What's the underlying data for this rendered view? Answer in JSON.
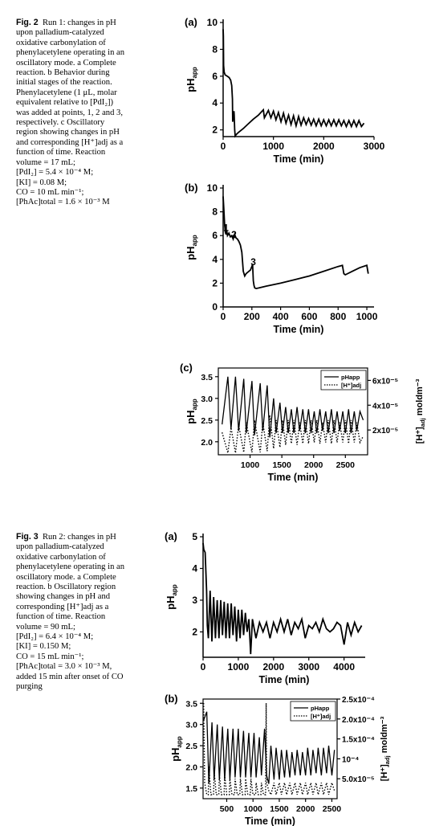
{
  "fig2": {
    "label": "Fig. 2",
    "lines": [
      "Run 1: changes in pH",
      "upon palladium-catalyzed",
      "oxidative carbonylation of",
      "phenylacetylene operating in an",
      "oscillatory mode. a Complete",
      "reaction. b Behavior during",
      "initial stages of the reaction.",
      "Phenylacetylene (1 μL, molar",
      "equivalent relative to [PdI₂])",
      "was added at points, 1, 2 and 3,",
      "respectively. c Oscillatory",
      "region showing changes in pH",
      "and corresponding [H⁺]adj as a",
      "function of time. Reaction",
      "volume = 17 mL;",
      "[PdI₂] = 5.4 × 10⁻⁴ M;",
      "[KI] = 0.08 M;",
      "CO = 10 mL min⁻¹;",
      "[PhAc]total = 1.6 × 10⁻³ M"
    ]
  },
  "fig3": {
    "label": "Fig. 3",
    "lines": [
      "Run 2: changes in pH",
      "upon palladium-catalyzed",
      "oxidative carbonylation of",
      "phenylacetylene operating in an",
      "oscillatory mode. a Complete",
      "reaction. b Oscillatory region",
      "showing changes in pH and",
      "corresponding [H⁺]adj as a",
      "function of time. Reaction",
      "volume = 90 mL;",
      "[PdI₂] = 6.4 × 10⁻⁴ M;",
      "[KI] = 0.150 M;",
      "CO = 15 mL min⁻¹;",
      "[PhAc]total = 3.0 × 10⁻³ M,",
      "added 15 min after onset of CO",
      "purging"
    ]
  },
  "chart_data": [
    {
      "id": "2a",
      "type": "line",
      "panel_label": "(a)",
      "xlabel": "Time (min)",
      "ylabel": "pH",
      "ylabel_sub": "app",
      "xlim": [
        0,
        3000
      ],
      "ylim": [
        1.5,
        10
      ],
      "xticks": [
        0,
        1000,
        2000,
        3000
      ],
      "yticks": [
        2,
        4,
        6,
        8,
        10
      ],
      "x": [
        0,
        5,
        10,
        20,
        40,
        80,
        120,
        150,
        170,
        185,
        190,
        200,
        205,
        215,
        220,
        230,
        240,
        250,
        260,
        300,
        400,
        500,
        600,
        700,
        800,
        820,
        900,
        950,
        1000,
        1050,
        1100,
        1150,
        1200,
        1250,
        1300,
        1350,
        1400,
        1450,
        1500,
        1550,
        1600,
        1650,
        1700,
        1750,
        1800,
        1850,
        1900,
        1950,
        2000,
        2050,
        2100,
        2150,
        2200,
        2250,
        2300,
        2350,
        2400,
        2450,
        2500,
        2550,
        2600,
        2650,
        2700,
        2750,
        2800
      ],
      "y": [
        9.5,
        9.0,
        6.8,
        6.3,
        6.1,
        6.0,
        5.9,
        5.7,
        5.3,
        4.3,
        2.6,
        3.0,
        2.8,
        3.4,
        3.1,
        2.0,
        1.55,
        1.6,
        1.65,
        1.8,
        2.1,
        2.45,
        2.8,
        3.1,
        3.5,
        2.9,
        3.45,
        2.9,
        3.4,
        2.75,
        3.3,
        2.6,
        3.25,
        2.5,
        3.1,
        2.4,
        3.05,
        2.3,
        3.0,
        2.35,
        2.9,
        2.4,
        2.85,
        2.35,
        2.8,
        2.3,
        2.8,
        2.3,
        2.75,
        2.3,
        2.75,
        2.3,
        2.75,
        2.3,
        2.75,
        2.3,
        2.7,
        2.25,
        2.7,
        2.25,
        2.7,
        2.25,
        2.7,
        2.25,
        2.5
      ]
    },
    {
      "id": "2b",
      "type": "line",
      "panel_label": "(b)",
      "xlabel": "Time (min)",
      "ylabel": "pH",
      "ylabel_sub": "app",
      "xlim": [
        0,
        1050
      ],
      "ylim": [
        0,
        10
      ],
      "xticks": [
        0,
        200,
        400,
        600,
        800,
        1000
      ],
      "yticks": [
        0,
        2,
        4,
        6,
        8,
        10
      ],
      "annotations": [
        {
          "text": "1",
          "x": 20,
          "y": 6.4
        },
        {
          "text": "2",
          "x": 75,
          "y": 5.8
        },
        {
          "text": "3",
          "x": 210,
          "y": 3.5
        }
      ],
      "x": [
        0,
        5,
        10,
        15,
        20,
        25,
        30,
        40,
        50,
        60,
        70,
        80,
        90,
        100,
        110,
        120,
        130,
        140,
        150,
        160,
        170,
        180,
        190,
        200,
        205,
        210,
        215,
        220,
        230,
        250,
        300,
        400,
        500,
        600,
        700,
        800,
        830,
        840,
        850,
        900,
        950,
        1000,
        1010
      ],
      "y": [
        9.3,
        8.2,
        7.0,
        6.3,
        6.1,
        6.4,
        6.0,
        6.2,
        5.9,
        6.0,
        5.7,
        6.1,
        5.8,
        5.7,
        5.5,
        5.2,
        4.6,
        3.0,
        2.6,
        2.8,
        2.9,
        3.0,
        3.1,
        3.4,
        3.6,
        2.2,
        1.8,
        1.6,
        1.55,
        1.6,
        1.75,
        2.0,
        2.3,
        2.6,
        3.0,
        3.4,
        3.5,
        2.8,
        2.7,
        3.0,
        3.3,
        3.5,
        2.8
      ]
    },
    {
      "id": "2c",
      "type": "line",
      "panel_label": "(c)",
      "xlabel": "Time (min)",
      "ylabel": "pH",
      "ylabel_sub": "app",
      "y2label": "[H⁺]",
      "y2label_sub": "adj",
      "y2label_tail": " moldm⁻³",
      "xlim": [
        500,
        2850
      ],
      "ylim": [
        1.7,
        3.7
      ],
      "y2lim": [
        0,
        7e-05
      ],
      "xticks": [
        1000,
        1500,
        2000,
        2500
      ],
      "yticks": [
        2.0,
        2.5,
        3.0,
        3.5
      ],
      "y2ticks": [
        {
          "value": 2e-05,
          "label": "2x10⁻⁵"
        },
        {
          "value": 4e-05,
          "label": "4x10⁻⁵"
        },
        {
          "value": 6e-05,
          "label": "6x10⁻⁵"
        }
      ],
      "legend": [
        {
          "name": "pHapp",
          "style": "solid"
        },
        {
          "name": "[H⁺]adj",
          "style": "dotted"
        }
      ],
      "legend_position": "top-right",
      "series": [
        {
          "name": "pHapp",
          "axis": "left",
          "x": [
            560,
            650,
            700,
            770,
            820,
            900,
            940,
            1030,
            1070,
            1160,
            1200,
            1270,
            1310,
            1370,
            1410,
            1470,
            1510,
            1560,
            1600,
            1650,
            1690,
            1740,
            1780,
            1830,
            1870,
            1920,
            1960,
            2010,
            2050,
            2100,
            2140,
            2190,
            2230,
            2280,
            2320,
            2370,
            2410,
            2460,
            2500,
            2550,
            2590,
            2640,
            2680,
            2730,
            2780
          ],
          "y": [
            2.4,
            3.5,
            2.3,
            3.5,
            2.25,
            3.45,
            2.2,
            3.4,
            2.15,
            3.35,
            2.25,
            3.3,
            2.1,
            3.0,
            2.2,
            2.9,
            2.2,
            2.8,
            2.2,
            2.75,
            2.2,
            2.8,
            2.25,
            2.75,
            2.2,
            2.75,
            2.2,
            2.7,
            2.2,
            2.75,
            2.25,
            2.7,
            2.2,
            2.75,
            2.2,
            2.7,
            2.25,
            2.7,
            2.2,
            2.75,
            2.2,
            2.7,
            2.25,
            2.7,
            2.5
          ]
        },
        {
          "name": "[H⁺]adj",
          "axis": "right",
          "x": [
            560,
            650,
            700,
            770,
            820,
            900,
            940,
            1030,
            1070,
            1160,
            1200,
            1270,
            1310,
            1370,
            1410,
            1470,
            1510,
            1560,
            1600,
            1650,
            1690,
            1740,
            1780,
            1830,
            1870,
            1920,
            1960,
            2010,
            2050,
            2100,
            2140,
            2190,
            2230,
            2280,
            2320,
            2370,
            2410,
            2460,
            2500,
            2550,
            2590,
            2640,
            2680,
            2730,
            2780
          ],
          "y": [
            1.8e-05,
            1.5e-06,
            2.2e-05,
            1.5e-06,
            2.4e-05,
            2e-06,
            2.6e-05,
            2e-06,
            2.8e-05,
            2e-06,
            2.6e-05,
            3e-06,
            3.2e-05,
            5e-06,
            2.8e-05,
            6e-06,
            2.8e-05,
            8e-06,
            2.8e-05,
            9e-06,
            2.8e-05,
            8e-06,
            2.6e-05,
            9e-06,
            2.8e-05,
            9e-06,
            2.8e-05,
            1e-05,
            2.8e-05,
            9e-06,
            2.6e-05,
            1e-05,
            2.8e-05,
            9e-06,
            2.8e-05,
            1e-05,
            2.6e-05,
            1e-05,
            2.8e-05,
            9e-06,
            2.8e-05,
            1e-05,
            2.6e-05,
            1e-05,
            1.5e-05
          ]
        }
      ]
    },
    {
      "id": "3a",
      "type": "line",
      "panel_label": "(a)",
      "xlabel": "Time (min)",
      "ylabel": "pH",
      "ylabel_sub": "app",
      "xlim": [
        0,
        4600
      ],
      "ylim": [
        1.2,
        5
      ],
      "xticks": [
        0,
        1000,
        2000,
        3000,
        4000
      ],
      "yticks": [
        2,
        3,
        4,
        5
      ],
      "x": [
        0,
        20,
        60,
        100,
        120,
        150,
        200,
        250,
        300,
        350,
        400,
        450,
        500,
        550,
        600,
        650,
        700,
        750,
        800,
        850,
        900,
        950,
        1000,
        1050,
        1100,
        1150,
        1200,
        1250,
        1300,
        1350,
        1400,
        1500,
        1600,
        1700,
        1800,
        1900,
        2000,
        2100,
        2200,
        2300,
        2400,
        2500,
        2600,
        2700,
        2800,
        2900,
        3000,
        3100,
        3200,
        3300,
        3400,
        3500,
        3600,
        3700,
        3800,
        3900,
        4000,
        4100,
        4200,
        4300,
        4400,
        4500
      ],
      "y": [
        4.8,
        4.6,
        4.5,
        3.3,
        2.2,
        1.8,
        3.3,
        1.7,
        3.1,
        1.8,
        3.0,
        1.8,
        3.0,
        1.9,
        2.95,
        1.8,
        2.9,
        1.8,
        2.9,
        1.9,
        2.8,
        1.7,
        2.7,
        1.8,
        2.7,
        1.9,
        2.6,
        2.0,
        2.4,
        1.3,
        2.4,
        1.8,
        2.3,
        2.0,
        2.3,
        1.8,
        2.3,
        2.0,
        2.4,
        2.0,
        2.4,
        1.9,
        2.3,
        2.1,
        2.4,
        1.8,
        2.2,
        2.1,
        2.3,
        2.0,
        2.4,
        2.1,
        2.0,
        2.1,
        2.3,
        2.2,
        1.6,
        2.3,
        1.9,
        2.3,
        2.0,
        2.2
      ]
    },
    {
      "id": "3b",
      "type": "line",
      "panel_label": "(b)",
      "xlabel": "Time (min)",
      "ylabel": "pH",
      "ylabel_sub": "app",
      "y2label": "[H⁺]",
      "y2label_sub": "adj",
      "y2label_tail": " moldm⁻³",
      "xlim": [
        50,
        2600
      ],
      "ylim": [
        1.25,
        3.6
      ],
      "y2lim": [
        0,
        0.00025
      ],
      "xticks": [
        500,
        1000,
        1500,
        2000,
        2500
      ],
      "yticks": [
        1.5,
        2.0,
        2.5,
        3.0,
        3.5
      ],
      "y2ticks": [
        {
          "value": 5e-05,
          "label": "5.0x10⁻⁵"
        },
        {
          "value": 0.0001,
          "label": "10⁻⁴"
        },
        {
          "value": 0.00015,
          "label": "1.5x10⁻⁴"
        },
        {
          "value": 0.0002,
          "label": "2.0x10⁻⁴"
        },
        {
          "value": 0.00025,
          "label": "2.5x10⁻⁴"
        }
      ],
      "legend": [
        {
          "name": "pHapp",
          "style": "solid"
        },
        {
          "name": "[H⁺]adj",
          "style": "dotted"
        }
      ],
      "legend_position": "top-right",
      "series": [
        {
          "name": "pHapp",
          "axis": "left",
          "x": [
            60,
            120,
            160,
            220,
            260,
            320,
            360,
            420,
            460,
            520,
            560,
            620,
            660,
            720,
            760,
            820,
            860,
            920,
            960,
            1020,
            1060,
            1120,
            1160,
            1220,
            1260,
            1300,
            1340,
            1400,
            1440,
            1500,
            1540,
            1600,
            1640,
            1700,
            1740,
            1800,
            1840,
            1900,
            1940,
            2000,
            2040,
            2100,
            2140,
            2200,
            2240,
            2300,
            2340,
            2400,
            2440,
            2500,
            2550
          ],
          "y": [
            3.1,
            3.3,
            1.6,
            3.05,
            1.7,
            3.0,
            1.7,
            2.95,
            1.7,
            2.9,
            1.7,
            2.9,
            1.75,
            2.9,
            1.75,
            2.85,
            1.75,
            2.8,
            1.75,
            2.8,
            1.75,
            2.7,
            1.8,
            2.9,
            1.8,
            1.6,
            2.5,
            1.7,
            2.45,
            1.7,
            2.4,
            1.75,
            2.4,
            1.75,
            2.35,
            1.8,
            2.4,
            1.8,
            2.35,
            1.8,
            2.45,
            1.8,
            2.4,
            1.85,
            2.45,
            1.8,
            2.45,
            1.85,
            2.5,
            1.8,
            2.4
          ]
        },
        {
          "name": "[H⁺]adj",
          "axis": "right",
          "x": [
            60,
            80,
            120,
            150,
            160,
            200,
            250,
            260,
            300,
            350,
            360,
            400,
            450,
            460,
            500,
            550,
            560,
            600,
            650,
            660,
            700,
            750,
            760,
            800,
            850,
            860,
            900,
            950,
            960,
            1000,
            1050,
            1060,
            1100,
            1150,
            1160,
            1200,
            1240,
            1250,
            1260,
            1300,
            1340,
            1400,
            1440,
            1500,
            1540,
            1600,
            1640,
            1700,
            1740,
            1800,
            1840,
            1900,
            1940,
            2000,
            2040,
            2100,
            2140,
            2200,
            2240,
            2300,
            2340,
            2400,
            2440,
            2500,
            2550
          ],
          "y": [
            0.00024,
            4e-05,
            1e-05,
            1e-05,
            8e-05,
            1e-05,
            1e-05,
            7e-05,
            1e-05,
            1e-05,
            6e-05,
            1e-05,
            1e-05,
            6e-05,
            1e-05,
            1e-05,
            5e-05,
            1e-05,
            1e-05,
            5e-05,
            1e-05,
            1e-05,
            5e-05,
            1e-05,
            1e-05,
            5e-05,
            1e-05,
            1e-05,
            5e-05,
            1e-05,
            1e-05,
            4e-05,
            1e-05,
            1e-05,
            4e-05,
            1e-05,
            1e-05,
            0.00024,
            4e-05,
            2e-05,
            1e-05,
            4e-05,
            1e-05,
            4e-05,
            1e-05,
            4e-05,
            1e-05,
            4e-05,
            1e-05,
            4e-05,
            1e-05,
            4e-05,
            1e-05,
            4e-05,
            1e-05,
            4e-05,
            1e-05,
            4e-05,
            1e-05,
            4e-05,
            1e-05,
            4e-05,
            1e-05,
            4e-05,
            2e-05
          ]
        }
      ]
    }
  ]
}
